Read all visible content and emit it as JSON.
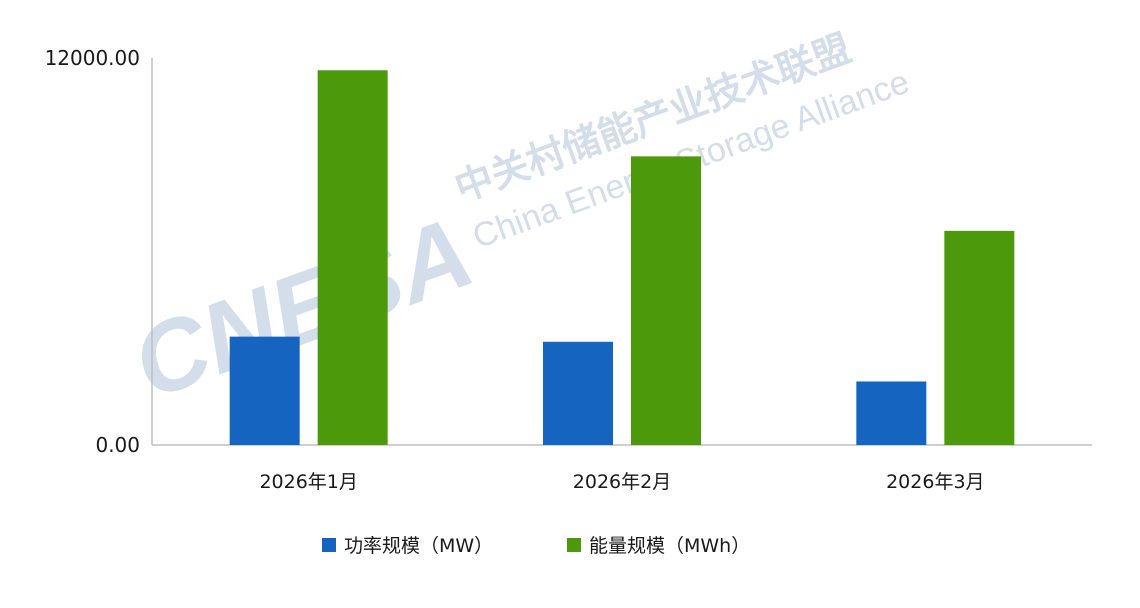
{
  "chart_data": {
    "type": "bar",
    "categories": [
      "2026年1月",
      "2026年2月",
      "2026年3月"
    ],
    "series": [
      {
        "name": "功率规模（MW）",
        "color": "#1565c0",
        "values": [
          3360,
          3200,
          1970
        ]
      },
      {
        "name": "能量规模（MWh）",
        "color": "#4c9a0b",
        "values": [
          11620,
          8950,
          6640
        ]
      }
    ],
    "ylim": [
      0,
      12000
    ],
    "y_ticks": [
      {
        "value": 0,
        "label": "0.00"
      },
      {
        "value": 12000,
        "label": "12000.00"
      }
    ],
    "grid": false,
    "legend_position": "bottom"
  },
  "watermark": {
    "logo": "CNESA",
    "cn": "中关村储能产业技术联盟",
    "en": "China Energy Storage Alliance"
  }
}
